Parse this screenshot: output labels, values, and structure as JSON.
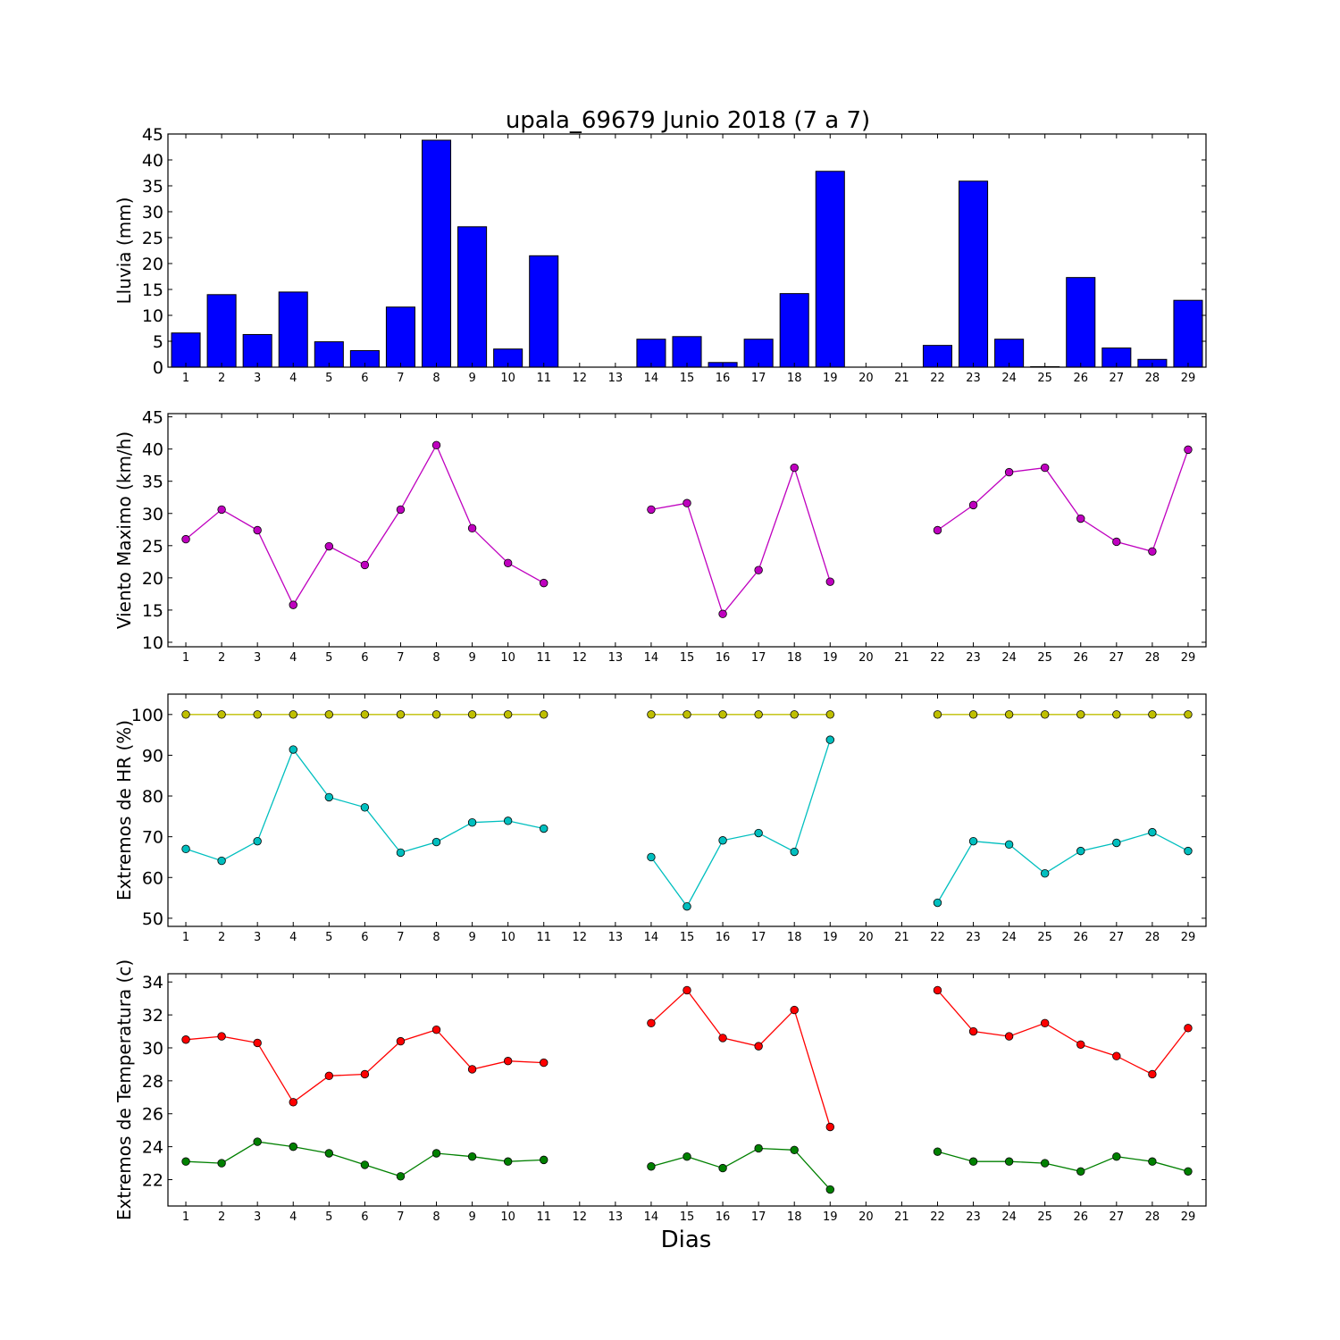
{
  "title": "upala_69679 Junio 2018  (7 a 7)",
  "xlabel": "Dias",
  "days": [
    1,
    2,
    3,
    4,
    5,
    6,
    7,
    8,
    9,
    10,
    11,
    12,
    13,
    14,
    15,
    16,
    17,
    18,
    19,
    20,
    21,
    22,
    23,
    24,
    25,
    26,
    27,
    28,
    29
  ],
  "chart_data": [
    {
      "type": "bar",
      "ylabel": "Lluvia (mm)",
      "ylim": [
        0,
        45
      ],
      "yticks": [
        0,
        5,
        10,
        15,
        20,
        25,
        30,
        35,
        40,
        45
      ],
      "color": "#0000ff",
      "series": [
        {
          "x": [
            1,
            2,
            3,
            4,
            5,
            6,
            7,
            8,
            9,
            10,
            11,
            12,
            13,
            14,
            15,
            16,
            17,
            18,
            19,
            20,
            21,
            22,
            23,
            24,
            25,
            26,
            27,
            28,
            29
          ],
          "values": [
            6.6,
            14.0,
            6.3,
            14.5,
            4.9,
            3.2,
            11.6,
            43.8,
            27.1,
            3.5,
            21.5,
            0,
            0,
            5.4,
            5.9,
            0.9,
            5.4,
            14.2,
            37.8,
            0,
            0,
            4.2,
            35.9,
            5.4,
            0.1,
            17.3,
            3.7,
            1.5,
            12.9
          ]
        }
      ]
    },
    {
      "type": "line",
      "ylabel": "Viento Maximo (km/h)",
      "ylim": [
        9.3,
        45.5
      ],
      "yticks": [
        10,
        15,
        20,
        25,
        30,
        35,
        40,
        45
      ],
      "series": [
        {
          "color": "#bf00bf",
          "x": [
            1,
            2,
            3,
            4,
            5,
            6,
            7,
            8,
            9,
            10,
            11,
            12,
            13,
            14,
            15,
            16,
            17,
            18,
            19,
            20,
            21,
            22,
            23,
            24,
            25,
            26,
            27,
            28,
            29
          ],
          "values": [
            26.0,
            30.6,
            27.4,
            15.8,
            24.9,
            22.0,
            30.6,
            40.6,
            27.7,
            22.3,
            19.2,
            null,
            null,
            30.6,
            31.6,
            14.4,
            21.2,
            37.1,
            19.4,
            null,
            null,
            27.4,
            31.3,
            36.4,
            37.1,
            29.2,
            25.6,
            24.1,
            39.9
          ]
        }
      ]
    },
    {
      "type": "line",
      "ylabel": "Extremos de HR (%)",
      "ylim": [
        48,
        105
      ],
      "yticks": [
        50,
        60,
        70,
        80,
        90,
        100
      ],
      "series": [
        {
          "color": "#bfbf00",
          "x": [
            1,
            2,
            3,
            4,
            5,
            6,
            7,
            8,
            9,
            10,
            11,
            12,
            13,
            14,
            15,
            16,
            17,
            18,
            19,
            20,
            21,
            22,
            23,
            24,
            25,
            26,
            27,
            28,
            29
          ],
          "values": [
            100,
            100,
            100,
            100,
            100,
            100,
            100,
            100,
            100,
            100,
            100,
            null,
            null,
            100,
            100,
            100,
            100,
            100,
            100,
            null,
            null,
            100,
            100,
            100,
            100,
            100,
            100,
            100,
            100
          ]
        },
        {
          "color": "#00bfbf",
          "x": [
            1,
            2,
            3,
            4,
            5,
            6,
            7,
            8,
            9,
            10,
            11,
            12,
            13,
            14,
            15,
            16,
            17,
            18,
            19,
            20,
            21,
            22,
            23,
            24,
            25,
            26,
            27,
            28,
            29
          ],
          "values": [
            67.0,
            64.1,
            68.9,
            91.4,
            79.7,
            77.2,
            66.1,
            68.7,
            73.5,
            73.9,
            72.0,
            null,
            null,
            65.0,
            52.9,
            69.1,
            70.9,
            66.3,
            93.8,
            null,
            null,
            53.8,
            68.9,
            68.1,
            61.0,
            66.5,
            68.5,
            71.1,
            66.5
          ]
        }
      ]
    },
    {
      "type": "line",
      "ylabel": "Extremos de Temperatura (c)",
      "ylim": [
        20.4,
        34.5
      ],
      "yticks": [
        22,
        24,
        26,
        28,
        30,
        32,
        34
      ],
      "series": [
        {
          "color": "#ff0000",
          "x": [
            1,
            2,
            3,
            4,
            5,
            6,
            7,
            8,
            9,
            10,
            11,
            12,
            13,
            14,
            15,
            16,
            17,
            18,
            19,
            20,
            21,
            22,
            23,
            24,
            25,
            26,
            27,
            28,
            29
          ],
          "values": [
            30.5,
            30.7,
            30.3,
            26.7,
            28.3,
            28.4,
            30.4,
            31.1,
            28.7,
            29.2,
            29.1,
            null,
            null,
            31.5,
            33.5,
            30.6,
            30.1,
            32.3,
            25.2,
            null,
            null,
            33.5,
            31.0,
            30.7,
            31.5,
            30.2,
            29.5,
            28.4,
            31.2
          ]
        },
        {
          "color": "#008000",
          "x": [
            1,
            2,
            3,
            4,
            5,
            6,
            7,
            8,
            9,
            10,
            11,
            12,
            13,
            14,
            15,
            16,
            17,
            18,
            19,
            20,
            21,
            22,
            23,
            24,
            25,
            26,
            27,
            28,
            29
          ],
          "values": [
            23.1,
            23.0,
            24.3,
            24.0,
            23.6,
            22.9,
            22.2,
            23.6,
            23.4,
            23.1,
            23.2,
            null,
            null,
            22.8,
            23.4,
            22.7,
            23.9,
            23.8,
            21.4,
            null,
            null,
            23.7,
            23.1,
            23.1,
            23.0,
            22.5,
            23.4,
            23.1,
            22.5
          ]
        }
      ]
    }
  ]
}
